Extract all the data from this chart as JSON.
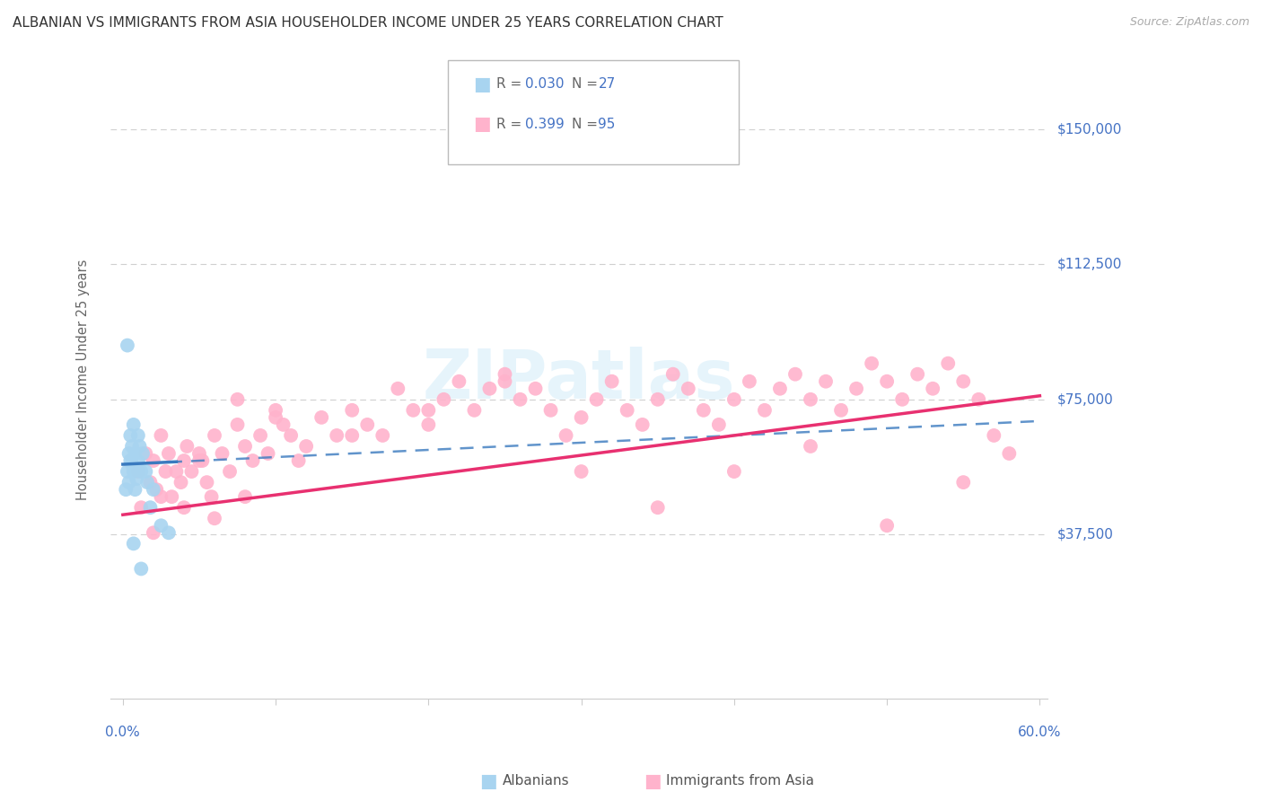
{
  "title": "ALBANIAN VS IMMIGRANTS FROM ASIA HOUSEHOLDER INCOME UNDER 25 YEARS CORRELATION CHART",
  "source": "Source: ZipAtlas.com",
  "ylabel": "Householder Income Under 25 years",
  "x_min": 0.0,
  "x_max": 0.6,
  "y_min": 0,
  "y_max": 168750,
  "y_ticks": [
    0,
    37500,
    75000,
    112500,
    150000
  ],
  "y_tick_labels": [
    "",
    "$37,500",
    "$75,000",
    "$112,500",
    "$150,000"
  ],
  "x_ticks": [
    0.0,
    0.1,
    0.2,
    0.3,
    0.4,
    0.5,
    0.6
  ],
  "albanians_color": "#a8d4f0",
  "asia_color": "#ffb3cc",
  "trend_albanian_color": "#3a7abf",
  "trend_asia_color": "#e83070",
  "label_color": "#4472c4",
  "alb_R": "0.030",
  "alb_N": "27",
  "asia_R": "0.399",
  "asia_N": "95",
  "watermark": "ZIPatlas",
  "alb_trend_intercept": 57000,
  "alb_trend_slope": 20000,
  "asia_trend_intercept": 43000,
  "asia_trend_slope": 55000,
  "albanians_x": [
    0.002,
    0.003,
    0.004,
    0.004,
    0.005,
    0.005,
    0.006,
    0.006,
    0.007,
    0.007,
    0.008,
    0.008,
    0.009,
    0.01,
    0.01,
    0.011,
    0.012,
    0.013,
    0.015,
    0.016,
    0.018,
    0.02,
    0.025,
    0.03,
    0.003,
    0.007,
    0.012
  ],
  "albanians_y": [
    50000,
    55000,
    52000,
    60000,
    58000,
    65000,
    62000,
    57000,
    68000,
    55000,
    60000,
    50000,
    53000,
    58000,
    65000,
    62000,
    55000,
    60000,
    55000,
    52000,
    45000,
    50000,
    40000,
    38000,
    90000,
    35000,
    28000
  ],
  "asia_x": [
    0.01,
    0.012,
    0.015,
    0.018,
    0.02,
    0.022,
    0.025,
    0.028,
    0.03,
    0.032,
    0.035,
    0.038,
    0.04,
    0.042,
    0.045,
    0.05,
    0.052,
    0.055,
    0.058,
    0.06,
    0.065,
    0.07,
    0.075,
    0.08,
    0.085,
    0.09,
    0.095,
    0.1,
    0.105,
    0.11,
    0.115,
    0.12,
    0.13,
    0.14,
    0.15,
    0.16,
    0.17,
    0.18,
    0.19,
    0.2,
    0.21,
    0.22,
    0.23,
    0.24,
    0.25,
    0.26,
    0.27,
    0.28,
    0.29,
    0.3,
    0.31,
    0.32,
    0.33,
    0.34,
    0.35,
    0.36,
    0.37,
    0.38,
    0.39,
    0.4,
    0.41,
    0.42,
    0.43,
    0.44,
    0.45,
    0.46,
    0.47,
    0.48,
    0.49,
    0.5,
    0.51,
    0.52,
    0.53,
    0.54,
    0.55,
    0.56,
    0.57,
    0.025,
    0.05,
    0.075,
    0.1,
    0.15,
    0.2,
    0.25,
    0.3,
    0.35,
    0.4,
    0.45,
    0.5,
    0.55,
    0.02,
    0.04,
    0.06,
    0.08,
    0.58
  ],
  "asia_y": [
    55000,
    45000,
    60000,
    52000,
    58000,
    50000,
    65000,
    55000,
    60000,
    48000,
    55000,
    52000,
    58000,
    62000,
    55000,
    60000,
    58000,
    52000,
    48000,
    65000,
    60000,
    55000,
    68000,
    62000,
    58000,
    65000,
    60000,
    72000,
    68000,
    65000,
    58000,
    62000,
    70000,
    65000,
    72000,
    68000,
    65000,
    78000,
    72000,
    68000,
    75000,
    80000,
    72000,
    78000,
    82000,
    75000,
    78000,
    72000,
    65000,
    70000,
    75000,
    80000,
    72000,
    68000,
    75000,
    82000,
    78000,
    72000,
    68000,
    75000,
    80000,
    72000,
    78000,
    82000,
    75000,
    80000,
    72000,
    78000,
    85000,
    80000,
    75000,
    82000,
    78000,
    85000,
    80000,
    75000,
    65000,
    48000,
    58000,
    75000,
    70000,
    65000,
    72000,
    80000,
    55000,
    45000,
    55000,
    62000,
    40000,
    52000,
    38000,
    45000,
    42000,
    48000,
    60000
  ]
}
